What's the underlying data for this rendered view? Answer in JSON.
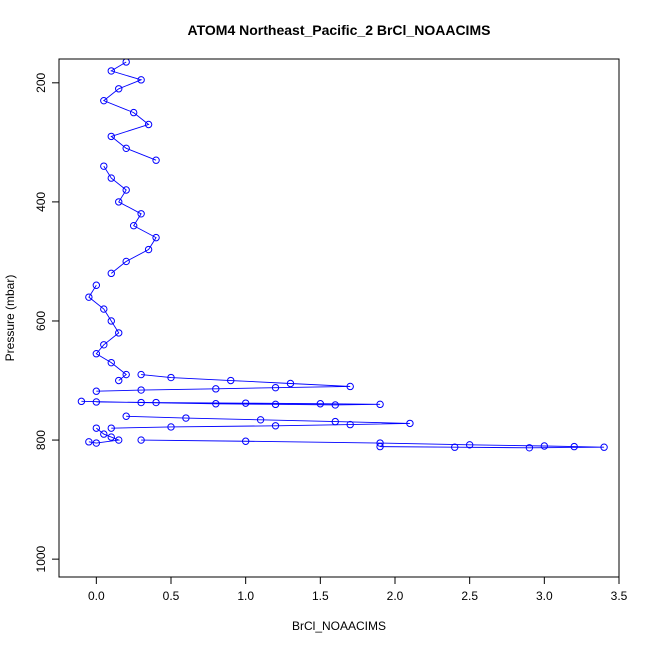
{
  "chart_data": {
    "type": "line",
    "title": "ATOM4 Northeast_Pacific_2 BrCl_NOAACIMS",
    "xlabel": "BrCl_NOAACIMS",
    "ylabel": "Pressure (mbar)",
    "xlim": [
      -0.25,
      3.5
    ],
    "ylim": [
      1030,
      160
    ],
    "y_reversed": true,
    "grid": false,
    "legend": "none",
    "x_ticks": [
      0.0,
      0.5,
      1.0,
      1.5,
      2.0,
      2.5,
      3.0,
      3.5
    ],
    "x_tick_labels": [
      "0.0",
      "0.5",
      "1.0",
      "1.5",
      "2.0",
      "2.5",
      "3.0",
      "3.5"
    ],
    "y_ticks": [
      200,
      400,
      600,
      800,
      1000
    ],
    "y_tick_labels": [
      "200",
      "400",
      "600",
      "800",
      "1000"
    ],
    "color": "#0000ff",
    "marker": "open-circle",
    "series": [
      {
        "x": [
          0.2,
          0.1,
          0.3,
          0.15,
          0.05,
          0.25,
          0.35,
          0.1,
          0.2,
          0.4
        ],
        "y": [
          165,
          180,
          195,
          210,
          230,
          250,
          270,
          290,
          310,
          330
        ]
      },
      {
        "x": [
          0.05,
          0.1,
          0.2,
          0.15,
          0.3,
          0.25,
          0.4,
          0.35,
          0.2,
          0.1
        ],
        "y": [
          340,
          360,
          380,
          400,
          420,
          440,
          460,
          480,
          500,
          520
        ]
      },
      {
        "x": [
          0.0,
          -0.05,
          0.05,
          0.1,
          0.15,
          0.05,
          0.0,
          0.1,
          0.2,
          0.15
        ],
        "y": [
          540,
          560,
          580,
          600,
          620,
          640,
          655,
          670,
          690,
          700
        ]
      },
      {
        "x": [
          0.3,
          0.5,
          0.9,
          1.3,
          1.7,
          1.2,
          0.8,
          0.3,
          0.0
        ],
        "y": [
          690,
          695,
          700,
          705,
          710,
          712,
          714,
          716,
          718
        ]
      },
      {
        "x": [
          -0.1,
          0.3,
          0.8,
          1.2,
          1.6,
          1.9,
          1.5,
          1.0,
          0.4,
          0.0
        ],
        "y": [
          735,
          737,
          739,
          740,
          741,
          740,
          739,
          738,
          737,
          736
        ]
      },
      {
        "x": [
          0.2,
          0.6,
          1.1,
          1.6,
          2.1,
          1.7,
          1.2,
          0.5,
          0.1
        ],
        "y": [
          760,
          763,
          766,
          769,
          772,
          774,
          776,
          778,
          780
        ]
      },
      {
        "x": [
          0.3,
          1.0,
          1.9,
          2.5,
          3.0,
          3.2,
          3.4,
          2.9,
          2.4,
          1.9
        ],
        "y": [
          800,
          802,
          805,
          808,
          810,
          811,
          812,
          813,
          812,
          811
        ]
      },
      {
        "x": [
          0.0,
          0.05,
          0.1,
          0.15,
          0.0,
          -0.05
        ],
        "y": [
          780,
          790,
          795,
          800,
          805,
          803
        ]
      }
    ]
  }
}
